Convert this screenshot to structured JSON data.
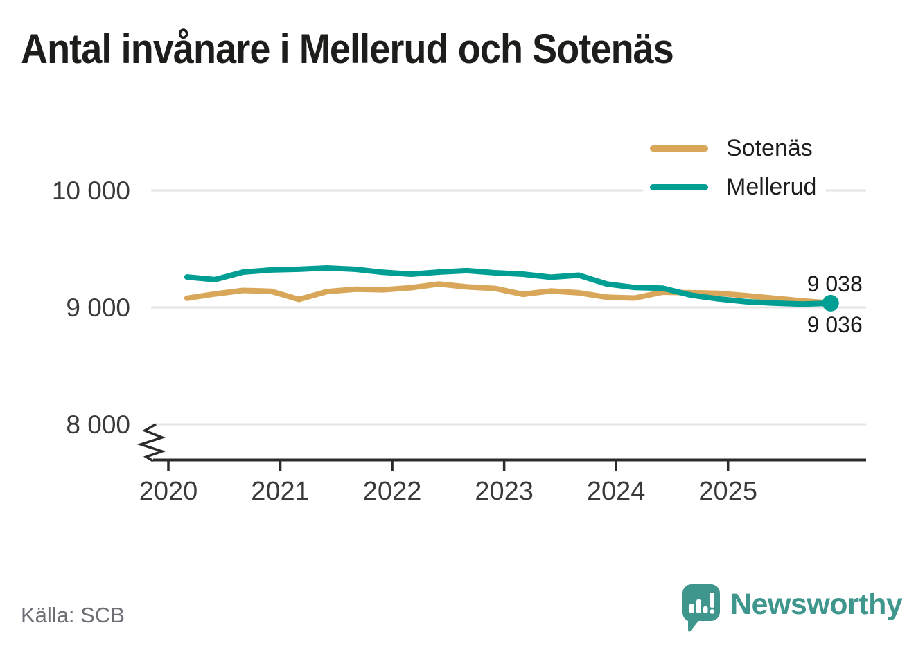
{
  "title": "Antal invånare i Mellerud och Sotenäs",
  "source": "Källa: SCB",
  "branding": {
    "wordmark": "Newsworthy",
    "brand_color": "#3E968D",
    "icon": "newsworthy-speech-bubble-bar-chart-icon"
  },
  "legend": {
    "position": "top-right",
    "items": [
      {
        "label": "Sotenäs",
        "color": "#D8A75A"
      },
      {
        "label": "Mellerud",
        "color": "#009E93"
      }
    ]
  },
  "chart_data": {
    "type": "line",
    "title": "Antal invånare i Mellerud och Sotenäs",
    "xlabel": "",
    "ylabel": "",
    "x": [
      "2020 Q1",
      "2020 Q2",
      "2020 Q3",
      "2020 Q4",
      "2021 Q1",
      "2021 Q2",
      "2021 Q3",
      "2021 Q4",
      "2022 Q1",
      "2022 Q2",
      "2022 Q3",
      "2022 Q4",
      "2023 Q1",
      "2023 Q2",
      "2023 Q3",
      "2023 Q4",
      "2024 Q1",
      "2024 Q2",
      "2024 Q3",
      "2024 Q4",
      "2025 Q1",
      "2025 Q2",
      "2025 Q3",
      "2025 Q4"
    ],
    "series": [
      {
        "name": "Sotenäs",
        "color": "#D8A75A",
        "end_label": "9 038",
        "end_dot": false,
        "values": [
          9078,
          9115,
          9145,
          9138,
          9068,
          9135,
          9155,
          9150,
          9168,
          9200,
          9175,
          9162,
          9112,
          9140,
          9125,
          9087,
          9080,
          9130,
          9125,
          9120,
          9100,
          9078,
          9055,
          9038
        ]
      },
      {
        "name": "Mellerud",
        "color": "#009E93",
        "end_label": "9 036",
        "end_dot": true,
        "values": [
          9260,
          9237,
          9302,
          9320,
          9326,
          9337,
          9326,
          9300,
          9284,
          9302,
          9314,
          9296,
          9284,
          9258,
          9275,
          9200,
          9170,
          9164,
          9105,
          9072,
          9048,
          9036,
          9028,
          9036
        ]
      }
    ],
    "yticks": [
      {
        "value": 8000,
        "label": "8 000"
      },
      {
        "value": 9000,
        "label": "9 000"
      },
      {
        "value": 10000,
        "label": "10 000"
      }
    ],
    "xticks": [
      {
        "label": "2020"
      },
      {
        "label": "2021"
      },
      {
        "label": "2022"
      },
      {
        "label": "2023"
      },
      {
        "label": "2024"
      },
      {
        "label": "2025"
      }
    ],
    "ylim": [
      8000,
      10000
    ],
    "y_axis_break": true,
    "grid": "horizontal",
    "legend_position": "top-right"
  }
}
